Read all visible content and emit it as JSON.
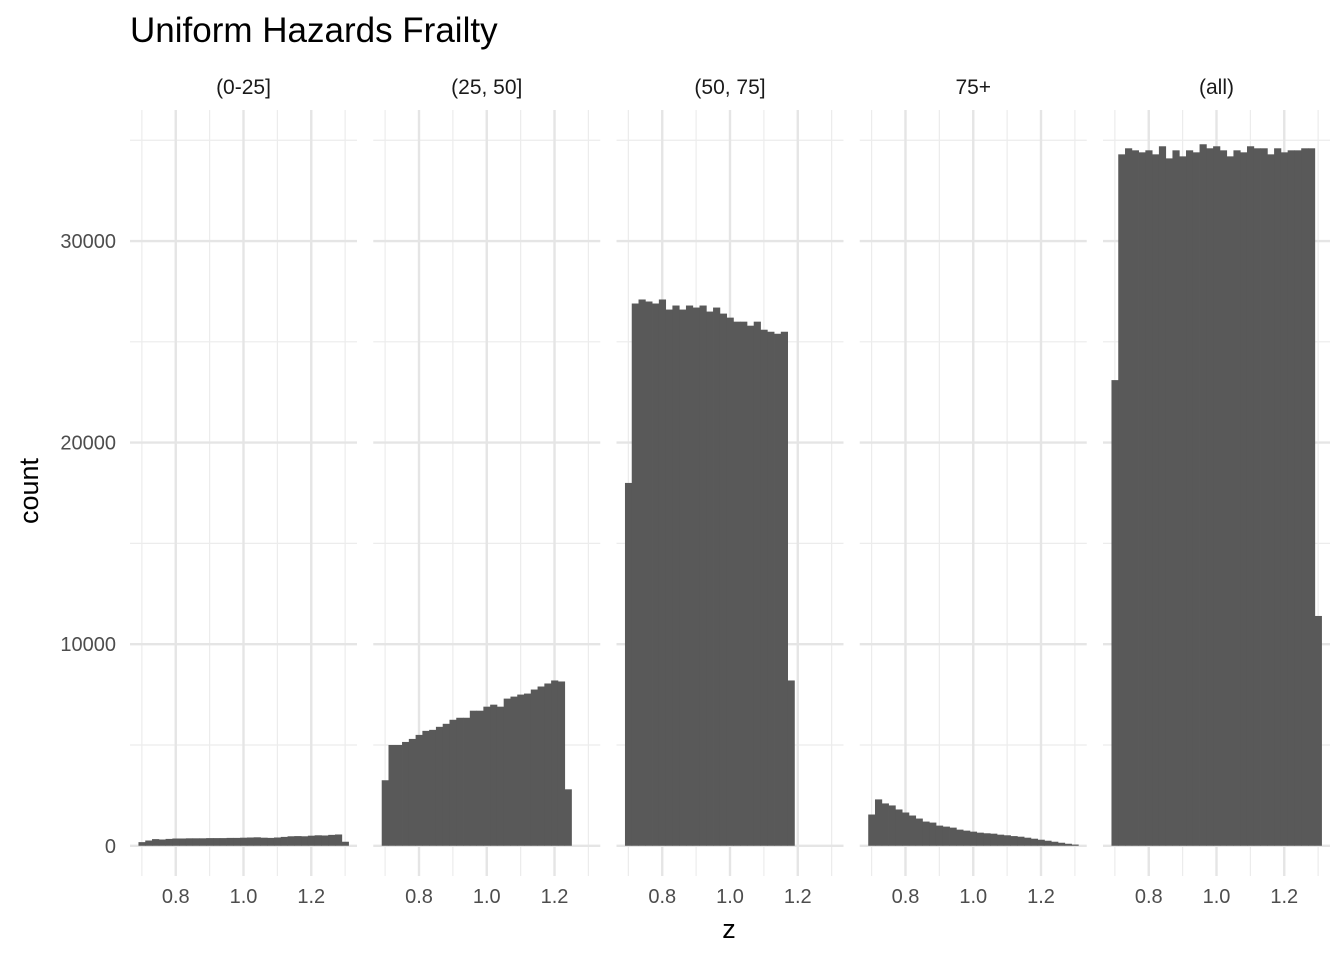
{
  "chart_data": {
    "type": "bar",
    "title": "Uniform Hazards Frailty",
    "xlabel": "z",
    "ylabel": "count",
    "ylim": [
      -1500,
      36500
    ],
    "xlim": [
      0.665,
      1.335
    ],
    "x_ticks": [
      0.8,
      1.0,
      1.2
    ],
    "x_tick_labels": [
      "0.8",
      "1.0",
      "1.2"
    ],
    "y_ticks": [
      0,
      10000,
      20000,
      30000
    ],
    "y_tick_labels": [
      "0",
      "10000",
      "20000",
      "30000"
    ],
    "grid": true,
    "bin_width": 0.02,
    "bin_centers": [
      0.7,
      0.72,
      0.74,
      0.76,
      0.78,
      0.8,
      0.82,
      0.84,
      0.86,
      0.88,
      0.9,
      0.92,
      0.94,
      0.96,
      0.98,
      1.0,
      1.02,
      1.04,
      1.06,
      1.08,
      1.1,
      1.12,
      1.14,
      1.16,
      1.18,
      1.2,
      1.22,
      1.24,
      1.26,
      1.28,
      1.3
    ],
    "bar_color": "#595959",
    "panels": [
      {
        "label": "(0-25]",
        "values": [
          180,
          260,
          330,
          310,
          340,
          360,
          360,
          370,
          370,
          370,
          380,
          380,
          380,
          390,
          390,
          400,
          410,
          420,
          400,
          390,
          410,
          440,
          470,
          480,
          470,
          500,
          520,
          510,
          540,
          560,
          200
        ]
      },
      {
        "label": "(25, 50]",
        "values": [
          3250,
          5000,
          5000,
          5150,
          5300,
          5500,
          5700,
          5750,
          5900,
          6050,
          6250,
          6350,
          6350,
          6700,
          6700,
          6900,
          7000,
          6900,
          7300,
          7400,
          7500,
          7550,
          7750,
          7900,
          8050,
          8200,
          8150,
          2800,
          0,
          0,
          0
        ]
      },
      {
        "label": "(50, 75]",
        "values": [
          18000,
          26900,
          27100,
          27000,
          26900,
          27100,
          26600,
          26800,
          26600,
          26800,
          26700,
          26800,
          26500,
          26700,
          26400,
          26200,
          26000,
          26000,
          25800,
          26000,
          25600,
          25500,
          25400,
          25500,
          8200,
          0,
          0,
          0,
          0,
          0,
          0
        ]
      },
      {
        "label": "75+",
        "values": [
          1550,
          2300,
          2100,
          2000,
          1800,
          1650,
          1500,
          1350,
          1200,
          1150,
          1000,
          950,
          900,
          800,
          750,
          700,
          650,
          620,
          600,
          550,
          520,
          480,
          450,
          400,
          350,
          300,
          250,
          200,
          150,
          100,
          60
        ]
      },
      {
        "label": "(all)",
        "values": [
          23100,
          34300,
          34600,
          34500,
          34400,
          34500,
          34300,
          34700,
          34100,
          34500,
          34200,
          34500,
          34400,
          34800,
          34600,
          34700,
          34500,
          34200,
          34500,
          34400,
          34700,
          34600,
          34600,
          34300,
          34600,
          34400,
          34500,
          34500,
          34600,
          34600,
          11400
        ]
      }
    ]
  }
}
